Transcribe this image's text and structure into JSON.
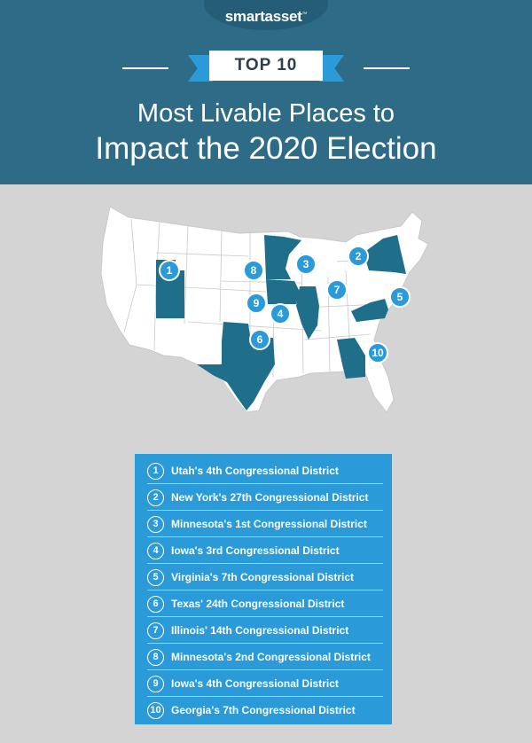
{
  "brand": {
    "logo_text": "smartasset",
    "trademark": "™"
  },
  "header": {
    "badge": "TOP 10",
    "title_line1": "Most Livable Places to",
    "title_line2": "Impact the 2020 Election"
  },
  "colors": {
    "header": "#2e6b86",
    "accent": "#2a9ad9",
    "highlight_state": "#1f6f8b",
    "background": "#d4d4d4"
  },
  "map_markers": [
    "1",
    "2",
    "3",
    "4",
    "5",
    "6",
    "7",
    "8",
    "9",
    "10"
  ],
  "rankings": [
    {
      "rank": "1",
      "name": "Utah's 4th Congressional District"
    },
    {
      "rank": "2",
      "name": "New York's 27th Congressional District"
    },
    {
      "rank": "3",
      "name": "Minnesota's 1st Congressional District"
    },
    {
      "rank": "4",
      "name": "Iowa's 3rd Congressional District"
    },
    {
      "rank": "5",
      "name": "Virginia's 7th Congressional District"
    },
    {
      "rank": "6",
      "name": "Texas' 24th Congressional District"
    },
    {
      "rank": "7",
      "name": "Illinois' 14th Congressional District"
    },
    {
      "rank": "8",
      "name": "Minnesota's 2nd Congressional District"
    },
    {
      "rank": "9",
      "name": "Iowa's 4th Congressional District"
    },
    {
      "rank": "10",
      "name": "Georgia's 7th Congressional District"
    }
  ]
}
